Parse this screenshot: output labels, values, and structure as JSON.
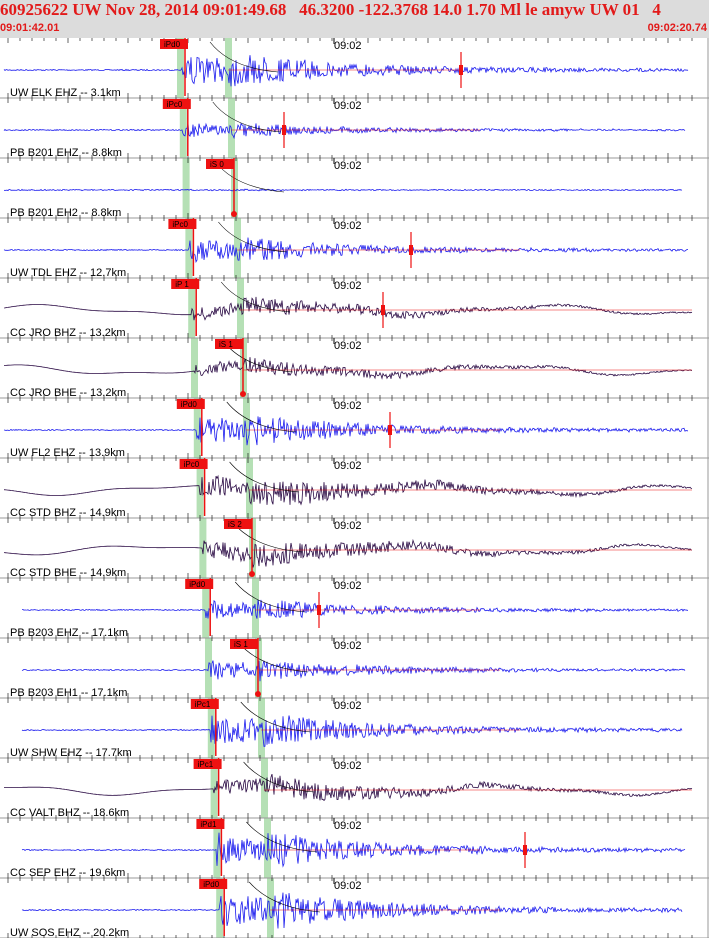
{
  "header": {
    "title": "60925622 UW Nov 28, 2014 09:01:49.68   46.3200 -122.3768 14.0 1.70 Ml le amyw UW 01   4",
    "start_time": "09:01:42.01",
    "end_time": "09:02:20.74"
  },
  "chart_data": {
    "type": "line",
    "title": "",
    "x_axis": {
      "start": "09:01:42.01",
      "end": "09:02:20.74",
      "tick_label": "09:02"
    },
    "colors": {
      "ehz": "#1a1aee",
      "broadband": "#2a0a44",
      "pick": "#ee1111",
      "phase_band": "#b5e0b5"
    },
    "grid": false,
    "traces": [
      {
        "label": "UW ELK EHZ -- 3.1km",
        "channel": "ehz",
        "picks": [
          "iPd0"
        ],
        "amplitude": 0.8,
        "p_onset": 0.26,
        "s_onset": 0.33,
        "coda_pick": 0.65
      },
      {
        "label": "PB B201 EHZ -- 8.8km",
        "channel": "ehz",
        "picks": [
          "iPc0"
        ],
        "amplitude": 0.35,
        "p_onset": 0.27,
        "s_onset": 0.33,
        "coda_pick": 0.4
      },
      {
        "label": "PB B201 EH2 -- 8.8km",
        "channel": "ehz",
        "picks": [
          "iS 0"
        ],
        "amplitude": 0.02,
        "p_onset": 0.27,
        "s_onset": 0.33,
        "coda_pick": null
      },
      {
        "label": "UW TDL EHZ -- 12.7km",
        "channel": "ehz",
        "picks": [
          "iPc0"
        ],
        "amplitude": 0.6,
        "p_onset": 0.28,
        "s_onset": 0.34,
        "coda_pick": 0.58
      },
      {
        "label": "CC JRO BHZ -- 13.2km",
        "channel": "broadband",
        "picks": [
          "iP 1"
        ],
        "amplitude": 0.55,
        "p_onset": 0.285,
        "s_onset": 0.35,
        "coda_pick": 0.54
      },
      {
        "label": "CC JRO BHE -- 13.2km",
        "channel": "broadband",
        "picks": [
          "iS 1"
        ],
        "amplitude": 0.5,
        "p_onset": 0.285,
        "s_onset": 0.355,
        "coda_pick": null
      },
      {
        "label": "UW FL2 EHZ -- 13.9km",
        "channel": "ehz",
        "picks": [
          "iPd0"
        ],
        "amplitude": 0.75,
        "p_onset": 0.29,
        "s_onset": 0.36,
        "coda_pick": 0.55
      },
      {
        "label": "CC STD BHZ -- 14.9km",
        "channel": "broadband",
        "picks": [
          "iPc0"
        ],
        "amplitude": 0.85,
        "p_onset": 0.29,
        "s_onset": 0.36,
        "coda_pick": null
      },
      {
        "label": "CC STD BHE -- 14.9km",
        "channel": "broadband",
        "picks": [
          "iS 2"
        ],
        "amplitude": 0.7,
        "p_onset": 0.29,
        "s_onset": 0.365,
        "coda_pick": null
      },
      {
        "label": "PB B203 EHZ -- 17.1km",
        "channel": "ehz",
        "picks": [
          "iPd0"
        ],
        "amplitude": 0.5,
        "p_onset": 0.295,
        "s_onset": 0.37,
        "coda_pick": 0.45
      },
      {
        "label": "PB B203 EH1 -- 17.1km",
        "channel": "ehz",
        "picks": [
          "iS 1"
        ],
        "amplitude": 0.5,
        "p_onset": 0.3,
        "s_onset": 0.37,
        "coda_pick": null
      },
      {
        "label": "UW SHW EHZ -- 17.7km",
        "channel": "ehz",
        "picks": [
          "iPc1"
        ],
        "amplitude": 0.8,
        "p_onset": 0.3,
        "s_onset": 0.375,
        "coda_pick": null
      },
      {
        "label": "CC VALT BHZ -- 18.6km",
        "channel": "broadband",
        "picks": [
          "iPc1"
        ],
        "amplitude": 0.65,
        "p_onset": 0.3,
        "s_onset": 0.375,
        "coda_pick": null
      },
      {
        "label": "CC SEP EHZ -- 19.6km",
        "channel": "ehz",
        "picks": [
          "iPd1"
        ],
        "amplitude": 0.85,
        "p_onset": 0.31,
        "s_onset": 0.38,
        "coda_pick": 0.74
      },
      {
        "label": "UW SOS EHZ -- 20.2km",
        "channel": "ehz",
        "picks": [
          "iPd0"
        ],
        "amplitude": 0.9,
        "p_onset": 0.31,
        "s_onset": 0.38,
        "coda_pick": null
      }
    ]
  }
}
